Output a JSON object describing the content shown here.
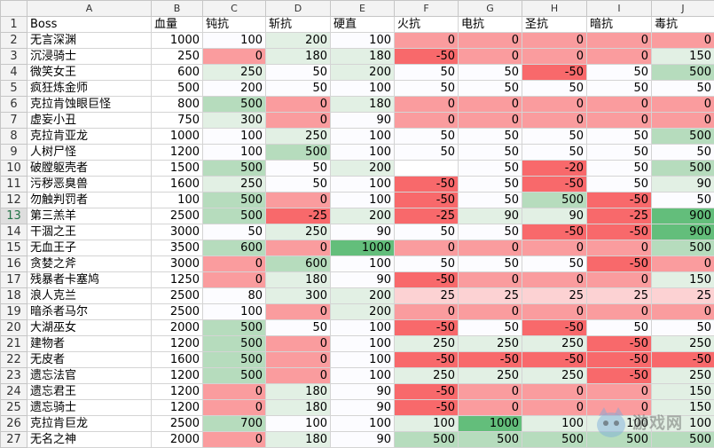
{
  "sheet": {
    "column_letters": [
      "A",
      "B",
      "C",
      "D",
      "E",
      "F",
      "G",
      "H",
      "I",
      "J"
    ],
    "active_row": "13",
    "colors": {
      "red_strong": "#f8696b",
      "red_mid": "#fa9c9e",
      "red_light": "#fcd2d3",
      "neutral": "#fcfcff",
      "green_light": "#e2f0e4",
      "green_mid": "#b6dcbd",
      "green_strong": "#63be7b"
    },
    "rows": [
      {
        "n": "1",
        "cells": [
          "Boss",
          "血量",
          "钝抗",
          "斩抗",
          "硬直",
          "火抗",
          "电抗",
          "圣抗",
          "暗抗",
          "毒抗"
        ]
      },
      {
        "n": "2",
        "cells": [
          "无言深渊",
          "1000",
          "100",
          "200",
          "100",
          "0",
          "0",
          "0",
          "0",
          "0"
        ]
      },
      {
        "n": "3",
        "cells": [
          "沉浸骑士",
          "250",
          "0",
          "180",
          "180",
          "-50",
          "0",
          "0",
          "0",
          "150"
        ]
      },
      {
        "n": "4",
        "cells": [
          "微笑女王",
          "600",
          "250",
          "50",
          "200",
          "50",
          "50",
          "-50",
          "50",
          "500"
        ]
      },
      {
        "n": "5",
        "cells": [
          "疯狂炼金师",
          "500",
          "200",
          "50",
          "100",
          "50",
          "50",
          "50",
          "50",
          "50"
        ]
      },
      {
        "n": "6",
        "cells": [
          "克拉肯蚀眼巨怪",
          "800",
          "500",
          "0",
          "180",
          "0",
          "0",
          "0",
          "0",
          "0"
        ]
      },
      {
        "n": "7",
        "cells": [
          "虚妄小丑",
          "750",
          "300",
          "0",
          "90",
          "0",
          "0",
          "0",
          "0",
          "0"
        ]
      },
      {
        "n": "8",
        "cells": [
          "克拉肯亚龙",
          "1000",
          "100",
          "250",
          "100",
          "50",
          "50",
          "50",
          "50",
          "500"
        ]
      },
      {
        "n": "9",
        "cells": [
          "人树尸怪",
          "1200",
          "100",
          "500",
          "100",
          "50",
          "50",
          "50",
          "50",
          "50"
        ]
      },
      {
        "n": "10",
        "cells": [
          "破膛躯壳者",
          "1500",
          "500",
          "50",
          "200",
          "",
          "50",
          "-20",
          "50",
          "500"
        ]
      },
      {
        "n": "11",
        "cells": [
          "污秽恶臭兽",
          "1600",
          "250",
          "50",
          "100",
          "-50",
          "50",
          "-50",
          "50",
          "90"
        ]
      },
      {
        "n": "12",
        "cells": [
          "勿触判罚者",
          "100",
          "500",
          "0",
          "100",
          "-50",
          "50",
          "500",
          "-50",
          "50"
        ]
      },
      {
        "n": "13",
        "cells": [
          "第三羔羊",
          "2500",
          "500",
          "-25",
          "200",
          "-25",
          "90",
          "90",
          "-25",
          "900"
        ]
      },
      {
        "n": "14",
        "cells": [
          "干涸之王",
          "3000",
          "50",
          "250",
          "90",
          "50",
          "50",
          "-50",
          "-50",
          "900"
        ]
      },
      {
        "n": "15",
        "cells": [
          "无血王子",
          "3500",
          "600",
          "0",
          "1000",
          "0",
          "0",
          "0",
          "0",
          "500"
        ]
      },
      {
        "n": "16",
        "cells": [
          "贪婪之斧",
          "3000",
          "0",
          "600",
          "100",
          "50",
          "50",
          "50",
          "-50",
          "0"
        ]
      },
      {
        "n": "17",
        "cells": [
          "残暴者卡塞鸠",
          "1250",
          "0",
          "180",
          "90",
          "-50",
          "0",
          "0",
          "0",
          "150"
        ]
      },
      {
        "n": "18",
        "cells": [
          "浪人克兰",
          "2500",
          "80",
          "300",
          "200",
          "25",
          "25",
          "25",
          "25",
          "25"
        ]
      },
      {
        "n": "19",
        "cells": [
          "暗杀者马尔",
          "2500",
          "100",
          "0",
          "200",
          "0",
          "0",
          "0",
          "0",
          "0"
        ]
      },
      {
        "n": "20",
        "cells": [
          "大湖巫女",
          "2000",
          "500",
          "50",
          "100",
          "-50",
          "50",
          "-50",
          "50",
          "50"
        ]
      },
      {
        "n": "21",
        "cells": [
          "建物者",
          "1200",
          "500",
          "0",
          "100",
          "250",
          "250",
          "250",
          "-50",
          "250"
        ]
      },
      {
        "n": "22",
        "cells": [
          "无皮者",
          "1600",
          "500",
          "0",
          "100",
          "-50",
          "-50",
          "-50",
          "-50",
          "-50"
        ]
      },
      {
        "n": "23",
        "cells": [
          "遗忘法官",
          "1200",
          "500",
          "0",
          "100",
          "250",
          "250",
          "250",
          "-50",
          "250"
        ]
      },
      {
        "n": "24",
        "cells": [
          "遗忘君王",
          "1200",
          "0",
          "180",
          "90",
          "-50",
          "0",
          "0",
          "0",
          "150"
        ]
      },
      {
        "n": "25",
        "cells": [
          "遗忘骑士",
          "1200",
          "0",
          "180",
          "90",
          "-50",
          "0",
          "0",
          "0",
          "150"
        ]
      },
      {
        "n": "26",
        "cells": [
          "克拉肯巨龙",
          "2500",
          "700",
          "100",
          "100",
          "100",
          "1000",
          "100",
          "100",
          "100"
        ]
      },
      {
        "n": "27",
        "cells": [
          "无名之神",
          "2000",
          "0",
          "180",
          "90",
          "500",
          "500",
          "500",
          "500",
          "500"
        ]
      }
    ]
  },
  "watermark": {
    "text": "游戏网"
  }
}
